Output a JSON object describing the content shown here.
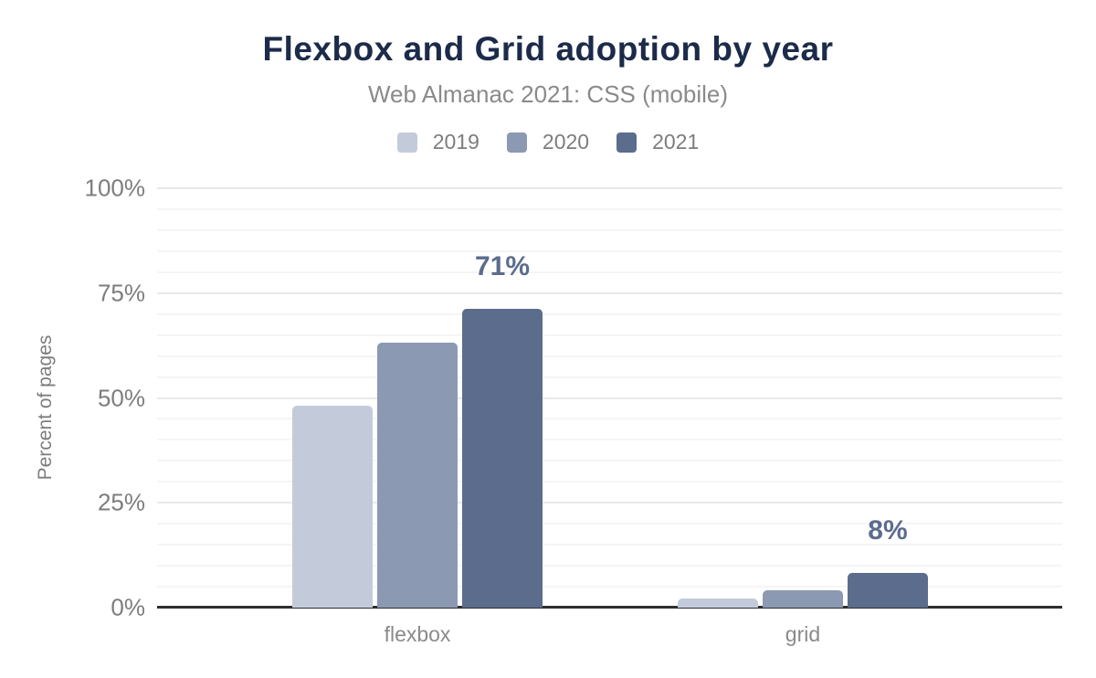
{
  "header": {
    "title": "Flexbox and Grid adoption by year",
    "subtitle": "Web Almanac 2021: CSS (mobile)"
  },
  "chart_data": {
    "type": "bar",
    "title": "Flexbox and Grid adoption by year",
    "subtitle": "Web Almanac 2021: CSS (mobile)",
    "categories": [
      "flexbox",
      "grid"
    ],
    "series": [
      {
        "name": "2019",
        "color": "#c3cbdb",
        "values": [
          48,
          2
        ]
      },
      {
        "name": "2020",
        "color": "#8c99b2",
        "values": [
          63,
          4
        ]
      },
      {
        "name": "2021",
        "color": "#5b6c8d",
        "values": [
          71,
          8
        ]
      }
    ],
    "data_labels": [
      {
        "category": "flexbox",
        "series": "2021",
        "text": "71%"
      },
      {
        "category": "grid",
        "series": "2021",
        "text": "8%"
      }
    ],
    "xlabel": "",
    "ylabel": "Percent of pages",
    "ylim": [
      0,
      100
    ],
    "yticks": [
      0,
      25,
      50,
      75,
      100
    ],
    "ytick_labels": [
      "0%",
      "25%",
      "50%",
      "75%",
      "100%"
    ],
    "minor_grid_step": 5,
    "grid": true,
    "legend_position": "top"
  },
  "colors": {
    "background": "#ffffff",
    "title": "#1c2b4a",
    "subtitle": "#8a8a8a",
    "axis_text": "#7d7d7d",
    "data_label": "#5b6c8d",
    "axis_line": "#2f2f2f",
    "grid_major": "#e9e9e9",
    "grid_minor": "#f5f5f5"
  }
}
